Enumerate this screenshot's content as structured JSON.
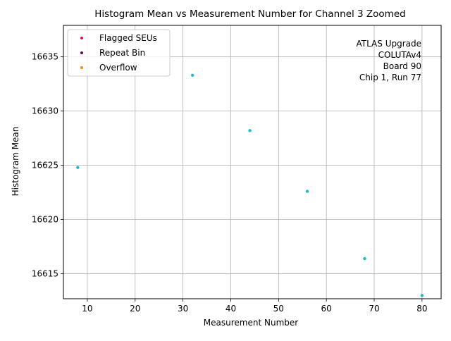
{
  "chart_data": {
    "type": "scatter",
    "title": "Histogram Mean vs Measurement Number for Channel 3 Zoomed",
    "xlabel": "Measurement Number",
    "ylabel": "Histogram Mean",
    "xlim": [
      5,
      84
    ],
    "ylim": [
      16612.7,
      16637.9
    ],
    "xticks": [
      10,
      20,
      30,
      40,
      50,
      60,
      70,
      80
    ],
    "yticks": [
      16615,
      16620,
      16625,
      16630,
      16635
    ],
    "grid": true,
    "legend_position": "upper-left",
    "legend": [
      {
        "name": "Flagged SEUs",
        "color": "#dc143c"
      },
      {
        "name": "Repeat Bin",
        "color": "#6a0a52"
      },
      {
        "name": "Overflow",
        "color": "#ff8c00"
      }
    ],
    "series": [
      {
        "color": "#17becf",
        "x": [
          8,
          32,
          44,
          56,
          68,
          80
        ],
        "y": [
          16624.8,
          16633.3,
          16628.2,
          16622.6,
          16616.4,
          16613.0
        ]
      }
    ],
    "annotation": [
      "ATLAS Upgrade",
      "COLUTAv4",
      "Board 90",
      "Chip 1, Run 77"
    ]
  }
}
